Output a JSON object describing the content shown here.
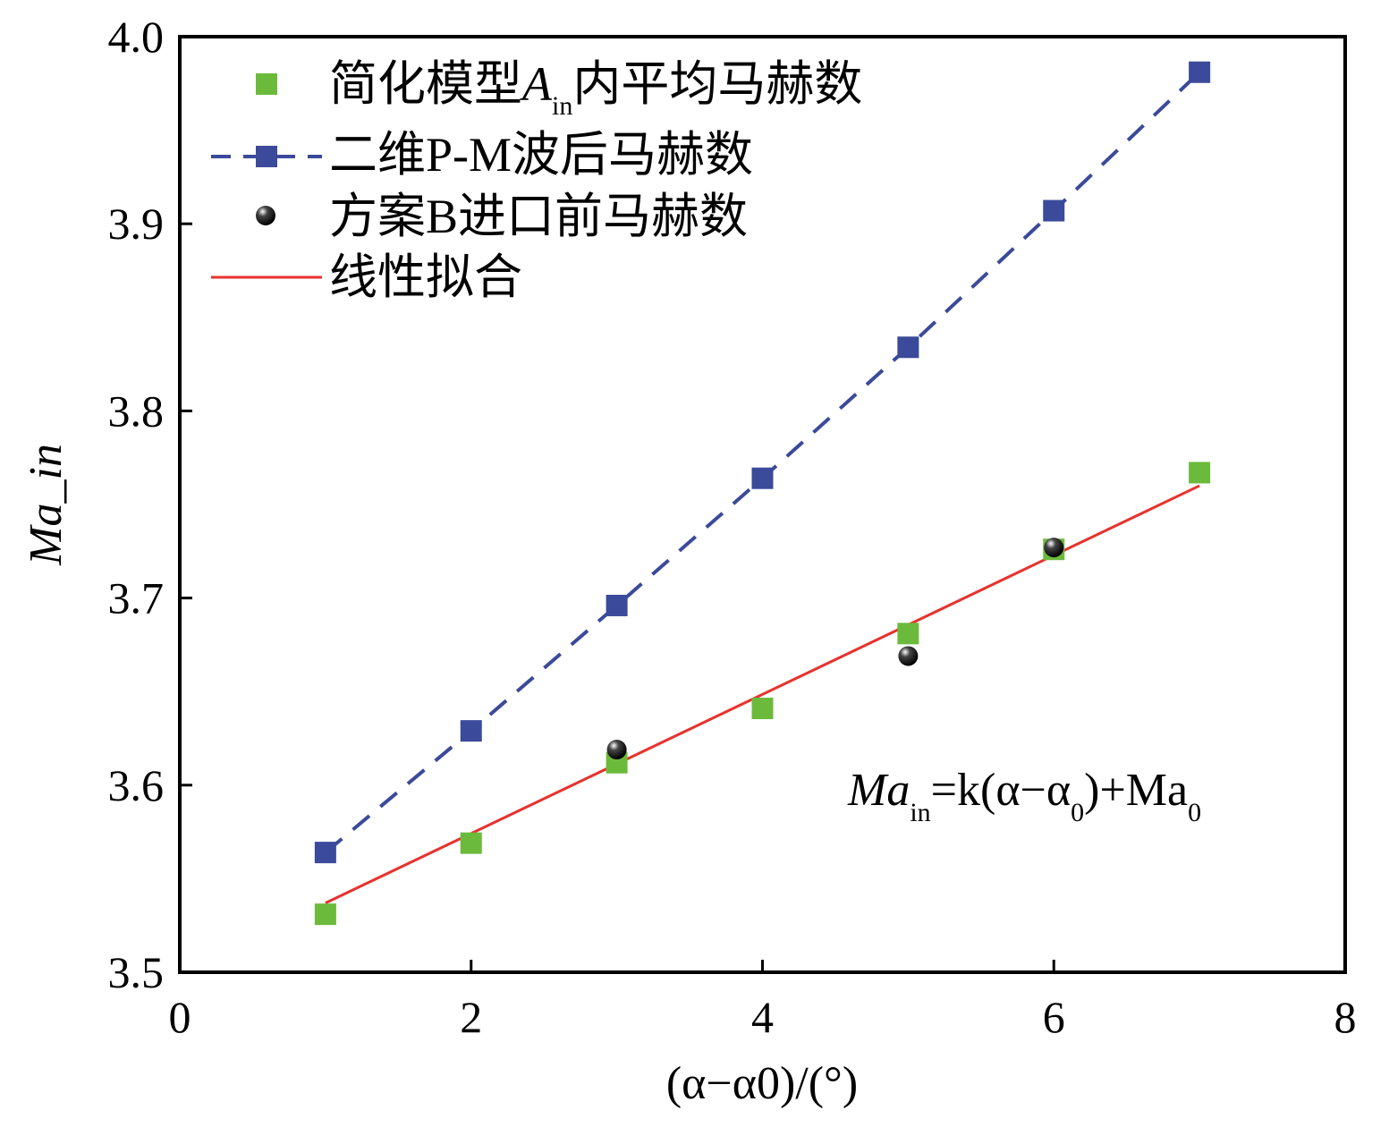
{
  "chart_data": {
    "type": "line",
    "title": "",
    "xlabel": "(α−α0)/(°)",
    "xlabel_parts": {
      "main": "(α−α",
      "sub": "0",
      "tail": ")/(°)"
    },
    "ylabel": "Ma_in",
    "ylabel_parts": {
      "main": "Ma",
      "sub": "in"
    },
    "xlim": [
      0,
      8
    ],
    "ylim": [
      3.5,
      4.0
    ],
    "xticks": [
      "0",
      "2",
      "4",
      "6",
      "8"
    ],
    "xtick_values": [
      0,
      2,
      4,
      6,
      8
    ],
    "yticks": [
      "3.5",
      "3.6",
      "3.7",
      "3.8",
      "3.9",
      "4.0"
    ],
    "ytick_values": [
      3.5,
      3.6,
      3.7,
      3.8,
      3.9,
      4.0
    ],
    "grid": false,
    "legend_position": "top-left",
    "series": [
      {
        "name": "简化模型A_in内平均马赫数",
        "legend_parts": {
          "pre": "简化模型",
          "it": "A",
          "sub": "in",
          "post": "内平均马赫数"
        },
        "kind": "scatter-square",
        "color": "#6cba3c",
        "x": [
          1,
          2,
          3,
          4,
          5,
          6,
          7
        ],
        "y": [
          3.531,
          3.569,
          3.612,
          3.641,
          3.681,
          3.726,
          3.767
        ]
      },
      {
        "name": "二维P-M波后马赫数",
        "kind": "dashed-square",
        "color": "#3b4a9a",
        "x": [
          1,
          2,
          3,
          4,
          5,
          6,
          7
        ],
        "y": [
          3.564,
          3.629,
          3.696,
          3.764,
          3.834,
          3.907,
          3.981
        ]
      },
      {
        "name": "方案B进口前马赫数",
        "kind": "scatter-sphere",
        "color": "#000000",
        "x": [
          3,
          5,
          6
        ],
        "y": [
          3.619,
          3.669,
          3.727
        ]
      },
      {
        "name": "线性拟合",
        "kind": "line",
        "color": "#e8322d",
        "x": [
          1,
          7
        ],
        "y": [
          3.537,
          3.76
        ]
      }
    ],
    "annotations": [
      {
        "text": "Ma_in=k(α−α0)+Ma0",
        "parts": [
          "Ma",
          "in",
          "=k(α−α",
          "0",
          ")+Ma",
          "0"
        ]
      }
    ]
  }
}
